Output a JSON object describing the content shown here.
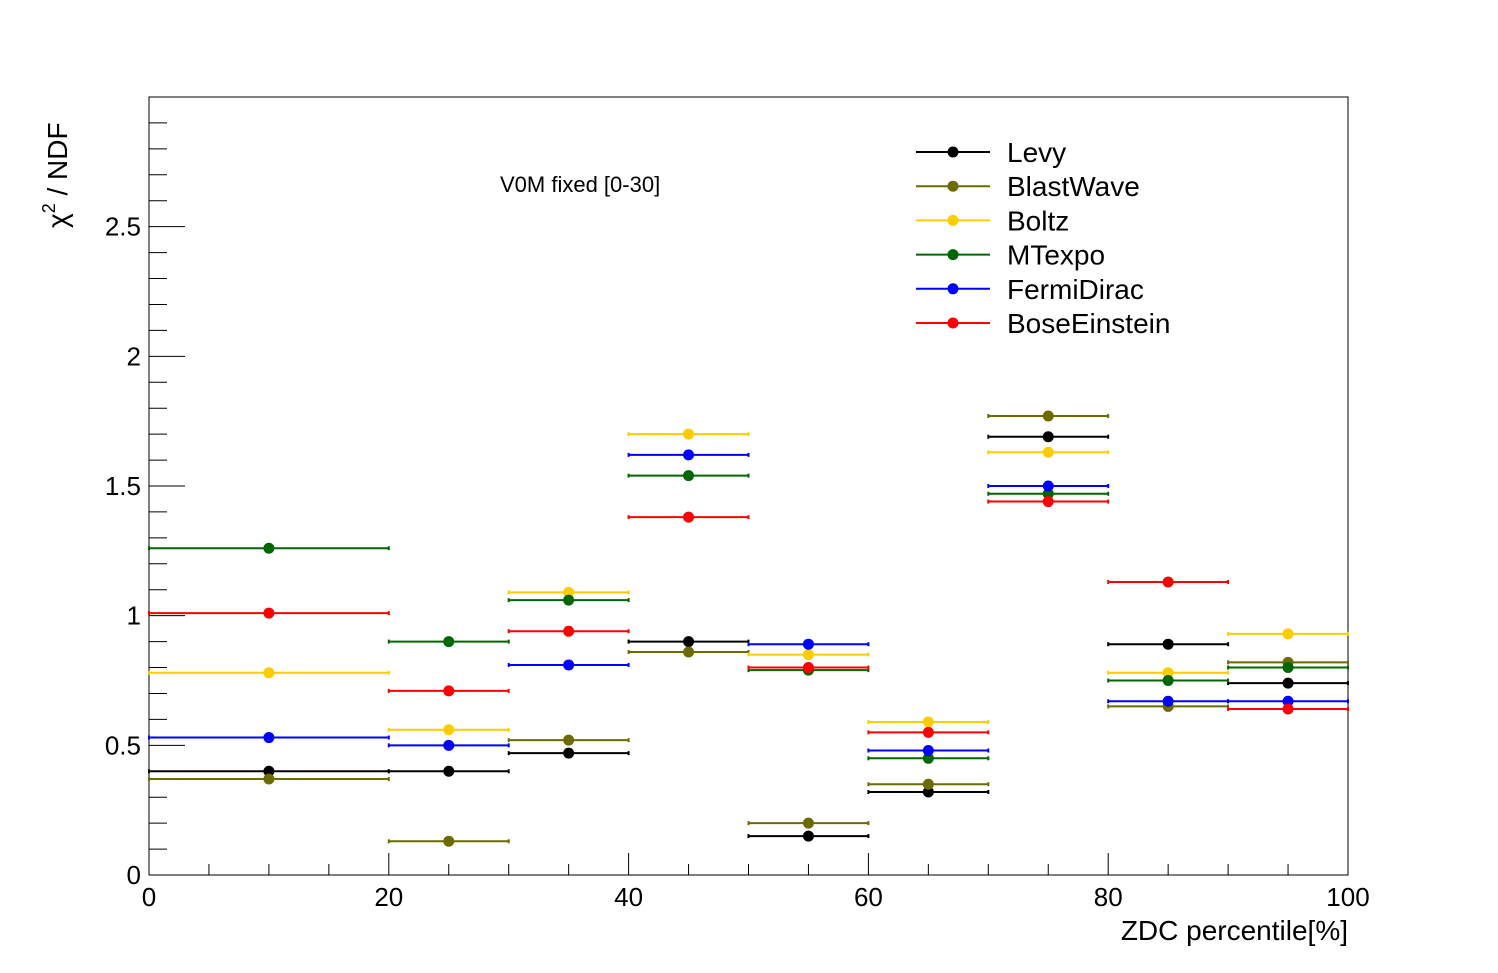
{
  "chart_data": {
    "type": "scatter",
    "annotation": "V0M fixed [0-30]",
    "xlabel": "ZDC percentile[%]",
    "ylabel_main": "χ",
    "ylabel_sup": "2",
    "ylabel_rest": " / NDF",
    "xlim": [
      0,
      100
    ],
    "ylim": [
      0,
      3.0
    ],
    "x_ticks": [
      "0",
      "20",
      "40",
      "60",
      "80",
      "100"
    ],
    "y_ticks": [
      "0",
      "0.5",
      "1",
      "1.5",
      "2",
      "2.5"
    ],
    "legend_position": "top-right",
    "bins": [
      {
        "low": 0,
        "high": 20,
        "center": 10
      },
      {
        "low": 20,
        "high": 30,
        "center": 25
      },
      {
        "low": 30,
        "high": 40,
        "center": 35
      },
      {
        "low": 40,
        "high": 50,
        "center": 45
      },
      {
        "low": 50,
        "high": 60,
        "center": 55
      },
      {
        "low": 60,
        "high": 70,
        "center": 65
      },
      {
        "low": 70,
        "high": 80,
        "center": 75
      },
      {
        "low": 80,
        "high": 90,
        "center": 85
      },
      {
        "low": 90,
        "high": 100,
        "center": 95
      }
    ],
    "series": [
      {
        "name": "Levy",
        "color": "#000000",
        "values": [
          0.4,
          0.4,
          0.47,
          0.9,
          0.15,
          0.32,
          1.69,
          0.89,
          0.74
        ]
      },
      {
        "name": "BlastWave",
        "color": "#6b6b00",
        "values": [
          0.37,
          0.13,
          0.52,
          0.86,
          0.2,
          0.35,
          1.77,
          0.65,
          0.82
        ]
      },
      {
        "name": "Boltz",
        "color": "#ffcc00",
        "values": [
          0.78,
          0.56,
          1.09,
          1.7,
          0.85,
          0.59,
          1.63,
          0.78,
          0.93
        ]
      },
      {
        "name": "MTexpo",
        "color": "#006600",
        "values": [
          1.26,
          0.9,
          1.06,
          1.54,
          0.79,
          0.45,
          1.47,
          0.75,
          0.8
        ]
      },
      {
        "name": "FermiDirac",
        "color": "#0000ff",
        "values": [
          0.53,
          0.5,
          0.81,
          1.62,
          0.89,
          0.48,
          1.5,
          0.67,
          0.67
        ]
      },
      {
        "name": "BoseEinstein",
        "color": "#ff0000",
        "values": [
          1.01,
          0.71,
          0.94,
          1.38,
          0.8,
          0.55,
          1.44,
          1.13,
          0.64
        ]
      }
    ]
  }
}
